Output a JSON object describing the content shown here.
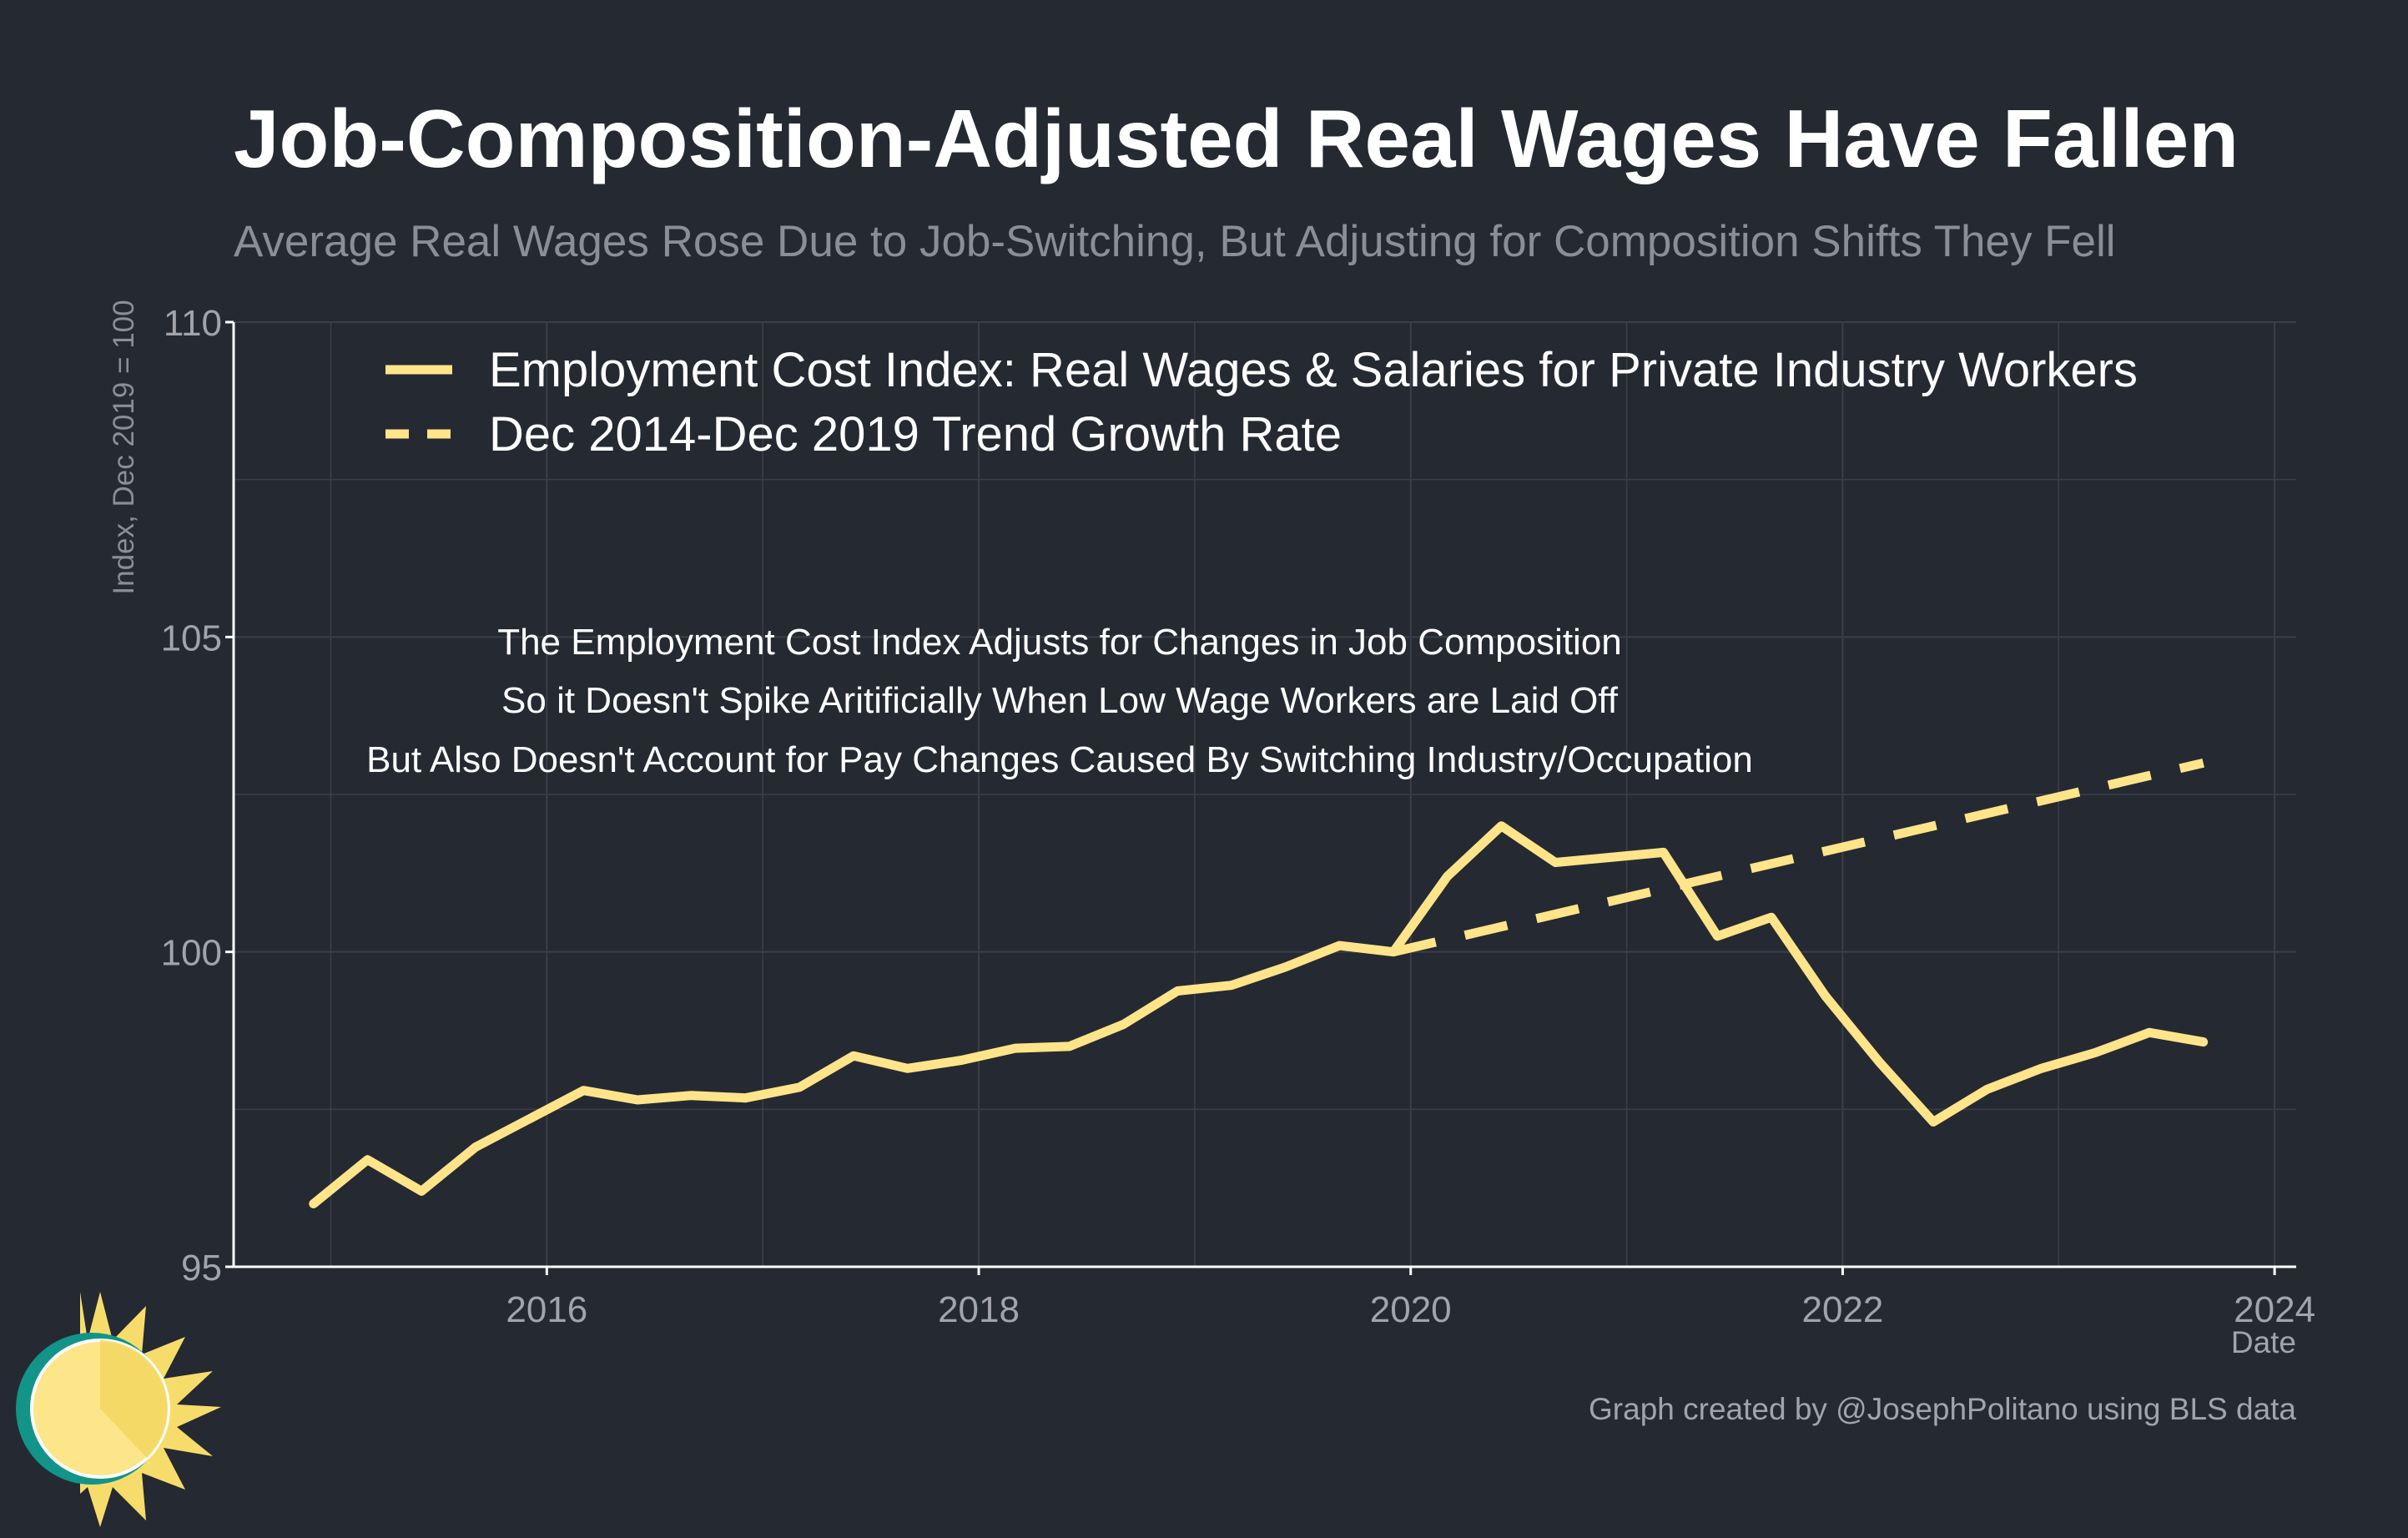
{
  "colors": {
    "background": "#252932",
    "grid": "#3b3f48",
    "axis": "#ffffff",
    "series": "#ffe48a",
    "logo_ring": "#129488",
    "logo_sun": "#fde58a",
    "logo_rays": "#f6dd6b"
  },
  "chart_data": {
    "type": "line",
    "title": "Job-Composition-Adjusted Real Wages Have Fallen",
    "subtitle": "Average Real Wages Rose Due to Job-Switching, But Adjusting for Composition Shifts They Fell",
    "ylabel": "Index, Dec 2019 = 100",
    "xlabel": "Date",
    "xlim": [
      2014.55,
      2024.1
    ],
    "ylim": [
      95,
      110
    ],
    "xticks": [
      {
        "value": 2016,
        "label": "2016"
      },
      {
        "value": 2018,
        "label": "2018"
      },
      {
        "value": 2020,
        "label": "2020"
      },
      {
        "value": 2022,
        "label": "2022"
      },
      {
        "value": 2024,
        "label": "2024"
      }
    ],
    "yticks": [
      {
        "value": 95,
        "label": "95"
      },
      {
        "value": 100,
        "label": "100"
      },
      {
        "value": 105,
        "label": "105"
      },
      {
        "value": 110,
        "label": "110"
      }
    ],
    "legend_position": "top",
    "series": [
      {
        "name": "Employment Cost Index: Real Wages & Salaries for Private Industry Workers",
        "style": "solid",
        "x": [
          2014.92,
          2015.17,
          2015.42,
          2015.67,
          2015.92,
          2016.17,
          2016.42,
          2016.67,
          2016.92,
          2017.17,
          2017.42,
          2017.67,
          2017.92,
          2018.17,
          2018.42,
          2018.67,
          2018.92,
          2019.17,
          2019.42,
          2019.67,
          2019.92,
          2020.17,
          2020.42,
          2020.67,
          2020.92,
          2021.17,
          2021.42,
          2021.67,
          2021.92,
          2022.17,
          2022.42,
          2022.67,
          2022.92,
          2023.17,
          2023.42,
          2023.67
        ],
        "y": [
          96.0,
          96.7,
          96.2,
          96.9,
          97.35,
          97.8,
          97.65,
          97.72,
          97.68,
          97.85,
          98.35,
          98.15,
          98.28,
          98.47,
          98.5,
          98.85,
          99.38,
          99.47,
          99.76,
          100.1,
          100.0,
          101.2,
          102.0,
          101.42,
          101.5,
          101.58,
          100.25,
          100.55,
          99.3,
          98.25,
          97.3,
          97.82,
          98.15,
          98.4,
          98.72,
          98.57
        ]
      },
      {
        "name": "Dec 2014-Dec 2019 Trend Growth Rate",
        "style": "dashed",
        "x": [
          2019.92,
          2023.67
        ],
        "y": [
          100.0,
          103.0
        ]
      }
    ],
    "annotations": [
      "The Employment Cost Index Adjusts for Changes in Job Composition",
      "So it Doesn't Spike Aritificially When Low Wage Workers are Laid Off",
      "But Also Doesn't Account for Pay Changes Caused By Switching Industry/Occupation"
    ],
    "credit": "Graph created by @JosephPolitano using BLS data"
  }
}
